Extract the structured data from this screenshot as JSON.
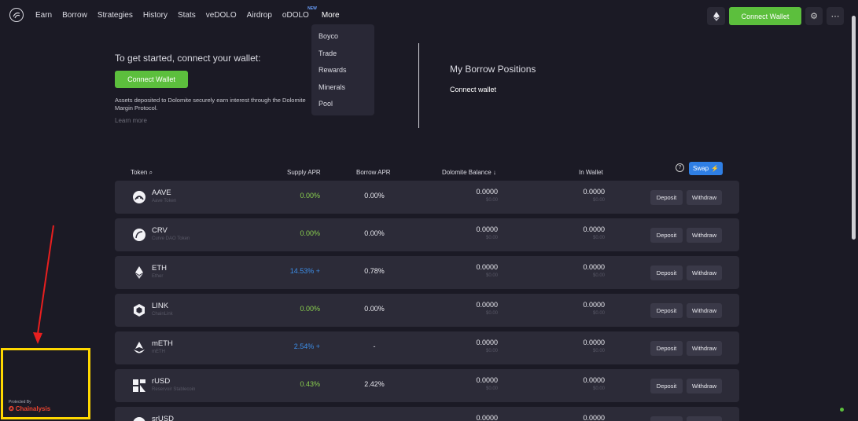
{
  "nav": {
    "links": [
      "Earn",
      "Borrow",
      "Strategies",
      "History",
      "Stats",
      "veDOLO",
      "Airdrop",
      "oDOLO",
      "More"
    ],
    "new_badge": "NEW",
    "connect_label": "Connect Wallet",
    "accent": "#5cbf3d"
  },
  "more_menu": [
    "Boyco",
    "Trade",
    "Rewards",
    "Minerals",
    "Pool"
  ],
  "connect_panel": {
    "title": "To get started, connect your wallet:",
    "button": "Connect Wallet",
    "description": "Assets deposited to Dolomite securely earn interest through the Dolomite Margin Protocol.",
    "learn_more": "Learn more"
  },
  "borrow_panel": {
    "title": "My Borrow Positions",
    "connect": "Connect wallet"
  },
  "table": {
    "headers": {
      "token": "Token",
      "supply": "Supply APR",
      "borrow": "Borrow APR",
      "balance": "Dolomite Balance ↓",
      "wallet": "In Wallet"
    },
    "swap_label": "Swap",
    "deposit_label": "Deposit",
    "withdraw_label": "Withdraw",
    "rows": [
      {
        "symbol": "AAVE",
        "name": "Aave Token",
        "supply": "0.00%",
        "supply_color": "green",
        "borrow": "0.00%",
        "balance": "0.0000",
        "balance_usd": "$0.00",
        "wallet": "0.0000",
        "wallet_usd": "$0.00",
        "icon": "aave-icon"
      },
      {
        "symbol": "CRV",
        "name": "Curve DAO Token",
        "supply": "0.00%",
        "supply_color": "green",
        "borrow": "0.00%",
        "balance": "0.0000",
        "balance_usd": "$0.00",
        "wallet": "0.0000",
        "wallet_usd": "$0.00",
        "icon": "crv-icon"
      },
      {
        "symbol": "ETH",
        "name": "Ether",
        "supply": "14.53% +",
        "supply_color": "blue",
        "borrow": "0.78%",
        "balance": "0.0000",
        "balance_usd": "$0.00",
        "wallet": "0.0000",
        "wallet_usd": "$0.00",
        "icon": "eth-icon"
      },
      {
        "symbol": "LINK",
        "name": "ChainLink",
        "supply": "0.00%",
        "supply_color": "green",
        "borrow": "0.00%",
        "balance": "0.0000",
        "balance_usd": "$0.00",
        "wallet": "0.0000",
        "wallet_usd": "$0.00",
        "icon": "link-icon"
      },
      {
        "symbol": "mETH",
        "name": "mETH",
        "supply": "2.54% +",
        "supply_color": "blue",
        "borrow": "-",
        "balance": "0.0000",
        "balance_usd": "$0.00",
        "wallet": "0.0000",
        "wallet_usd": "$0.00",
        "icon": "meth-icon"
      },
      {
        "symbol": "rUSD",
        "name": "Reservoir Stablecoin",
        "supply": "0.43%",
        "supply_color": "green",
        "borrow": "2.42%",
        "balance": "0.0000",
        "balance_usd": "$0.00",
        "wallet": "0.0000",
        "wallet_usd": "$0.00",
        "icon": "rusd-icon"
      },
      {
        "symbol": "srUSD",
        "name": "",
        "supply": "",
        "supply_color": "green",
        "borrow": "",
        "balance": "0.0000",
        "balance_usd": "",
        "wallet": "0.0000",
        "wallet_usd": "",
        "icon": "srusd-icon"
      }
    ]
  },
  "footer": {
    "protected_by": "Protected By",
    "brand": "Chainalysis"
  }
}
